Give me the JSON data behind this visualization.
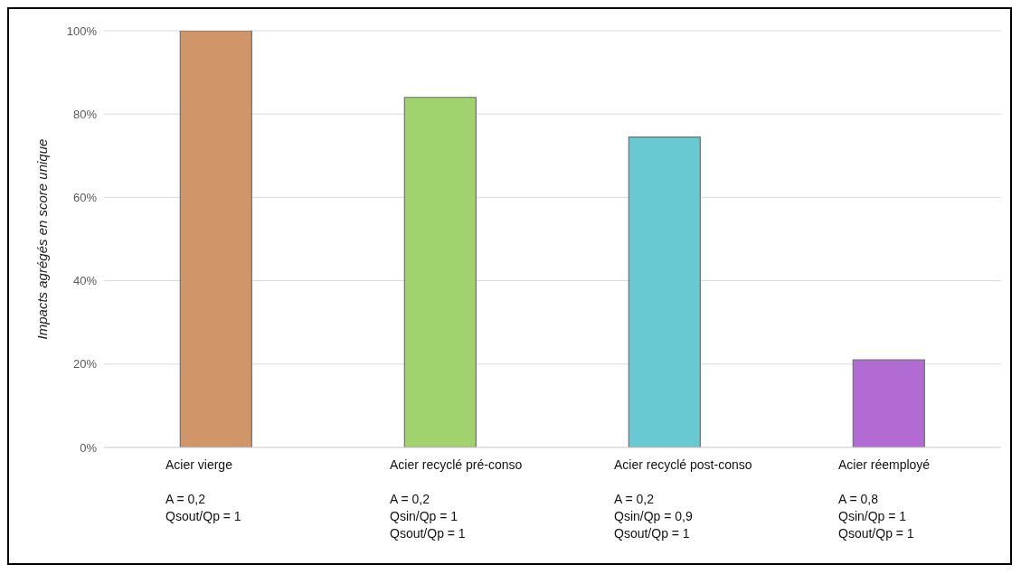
{
  "chart_data": {
    "type": "bar",
    "ylabel": "Impacts agrégés en score unique",
    "categories": [
      "Acier vierge\n\nA = 0,2\nQsout/Qp = 1",
      "Acier recyclé pré-conso\n\nA = 0,2\nQsin/Qp = 1\nQsout/Qp = 1",
      "Acier recyclé post-conso\n\nA = 0,2\nQsin/Qp = 0,9\nQsout/Qp = 1",
      "Acier réemployé\n\nA = 0,8\nQsin/Qp = 1\nQsout/Qp = 1"
    ],
    "values": [
      100,
      84,
      74.5,
      21
    ],
    "colors": [
      "#d09669",
      "#a0d36e",
      "#68c9d2",
      "#b36bd4"
    ],
    "ylim": [
      0,
      100
    ],
    "yticks": [
      {
        "value": 0,
        "label": "0%"
      },
      {
        "value": 20,
        "label": "20%"
      },
      {
        "value": 40,
        "label": "40%"
      },
      {
        "value": 60,
        "label": "60%"
      },
      {
        "value": 80,
        "label": "80%"
      },
      {
        "value": 100,
        "label": "100%"
      }
    ],
    "grid": "y"
  }
}
